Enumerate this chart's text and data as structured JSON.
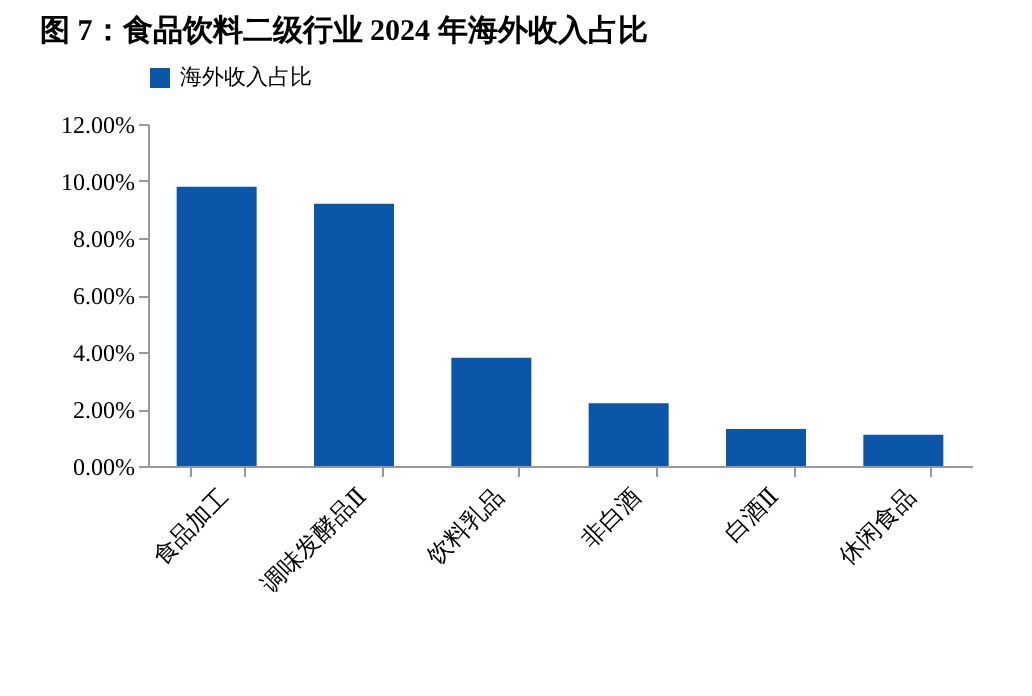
{
  "chart_data": {
    "type": "bar",
    "title": "图 7：食品饮料二级行业 2024 年海外收入占比",
    "categories": [
      "食品加工",
      "调味发酵品Ⅱ",
      "饮料乳品",
      "非白酒",
      "白酒Ⅱ",
      "休闲食品"
    ],
    "series": [
      {
        "name": "海外收入占比",
        "color": "#0b56a8",
        "values": [
          9.8,
          9.2,
          3.8,
          2.2,
          1.3,
          1.1
        ]
      }
    ],
    "ylim": [
      0,
      12
    ],
    "yticks": [
      {
        "value": 0,
        "label": "0.00%"
      },
      {
        "value": 2,
        "label": "2.00%"
      },
      {
        "value": 4,
        "label": "4.00%"
      },
      {
        "value": 6,
        "label": "6.00%"
      },
      {
        "value": 8,
        "label": "8.00%"
      },
      {
        "value": 10,
        "label": "10.00%"
      },
      {
        "value": 12,
        "label": "12.00%"
      }
    ],
    "grid": false,
    "legend": "top"
  }
}
